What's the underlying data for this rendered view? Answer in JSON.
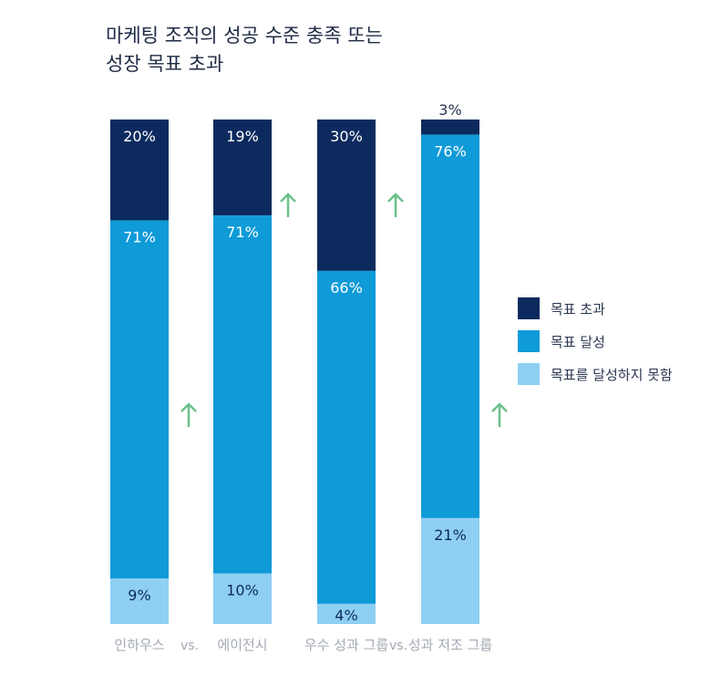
{
  "chart_data": {
    "type": "bar",
    "stacked": true,
    "title": "마케팅 조직의 성공 수준 충족 또는 성장 목표 초과",
    "title_lines": [
      "마케팅 조직의 성공 수준 충족 또는",
      "성장 목표 초과"
    ],
    "categories": [
      "인하우스",
      "에이전시",
      "우수 성과 그룹",
      "성과 저조 그룹"
    ],
    "separators": [
      "vs.",
      "vs."
    ],
    "ylim": [
      0,
      100
    ],
    "grid": false,
    "legend_position": "right",
    "series": [
      {
        "name": "목표 초과",
        "color": "#0c2a5e",
        "values": [
          20,
          19,
          30,
          3
        ],
        "labels": [
          "20%",
          "19%",
          "30%",
          "3%"
        ]
      },
      {
        "name": "목표 달성",
        "color": "#0f9ad8",
        "values": [
          71,
          71,
          66,
          76
        ],
        "labels": [
          "71%",
          "71%",
          "66%",
          "76%"
        ]
      },
      {
        "name": "목표를 달성하지 못함",
        "color": "#8fcff4",
        "values": [
          9,
          10,
          4,
          21
        ],
        "labels": [
          "9%",
          "10%",
          "4%",
          "21%"
        ]
      }
    ],
    "arrow_color": "#6cc08a",
    "arrows": [
      {
        "between": [
          "인하우스",
          "에이전시"
        ],
        "series": "목표 달성",
        "direction": "up"
      },
      {
        "between": [
          "에이전시",
          "우수 성과 그룹"
        ],
        "series": "목표 초과",
        "direction": "up"
      },
      {
        "between": [
          "우수 성과 그룹",
          "성과 저조 그룹"
        ],
        "series": "목표 초과",
        "direction": "up"
      },
      {
        "after": "성과 저조 그룹",
        "series": "목표 달성",
        "direction": "up"
      }
    ]
  }
}
